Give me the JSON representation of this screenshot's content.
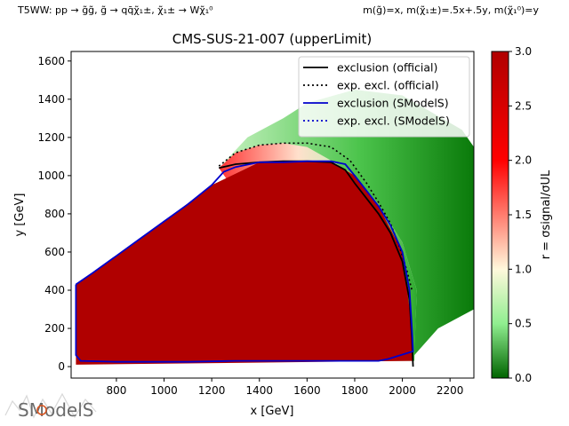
{
  "header": {
    "process": "T5WW: pp → g̃g̃, g̃ → qq̄χ̃₁±, χ̃₁± → Wχ̃₁⁰",
    "mass_relation": "m(g̃)=x, m(χ̃₁±)=.5x+.5y, m(χ̃₁⁰)=y"
  },
  "logo": {
    "text": "SModelS"
  },
  "chart_data": {
    "type": "heatmap",
    "title": "CMS-SUS-21-007 (upperLimit)",
    "xlabel": "x [GeV]",
    "ylabel": "y [GeV]",
    "xlim": [
      610,
      2300
    ],
    "ylim": [
      -60,
      1650
    ],
    "xticks": [
      800,
      1000,
      1200,
      1400,
      1600,
      1800,
      2000,
      2200
    ],
    "yticks": [
      0,
      200,
      400,
      600,
      800,
      1000,
      1200,
      1400,
      1600
    ],
    "colorbar": {
      "label": "r = σsignal/σUL",
      "range": [
        0.0,
        3.0
      ],
      "ticks": [
        "0.0",
        "0.5",
        "1.0",
        "1.5",
        "2.0",
        "2.5",
        "3.0"
      ],
      "colors": [
        {
          "value": 0.0,
          "color": "#006400"
        },
        {
          "value": 0.5,
          "color": "#90ee90"
        },
        {
          "value": 1.0,
          "color": "#fff8dc"
        },
        {
          "value": 2.0,
          "color": "#ff0000"
        },
        {
          "value": 3.0,
          "color": "#b00000"
        }
      ]
    },
    "legend_position": "top-right",
    "series": [
      {
        "name": "exclusion (official)",
        "color": "#000000",
        "style": "solid",
        "points": [
          [
            1230,
            1040
          ],
          [
            1300,
            1060
          ],
          [
            1400,
            1070
          ],
          [
            1500,
            1075
          ],
          [
            1600,
            1075
          ],
          [
            1700,
            1070
          ],
          [
            1760,
            1030
          ],
          [
            1800,
            960
          ],
          [
            1850,
            880
          ],
          [
            1900,
            800
          ],
          [
            1950,
            700
          ],
          [
            2000,
            550
          ],
          [
            2030,
            350
          ],
          [
            2040,
            150
          ],
          [
            2045,
            0
          ]
        ]
      },
      {
        "name": "exp. excl. (official)",
        "color": "#000000",
        "style": "dotted",
        "points": [
          [
            1230,
            1050
          ],
          [
            1300,
            1120
          ],
          [
            1400,
            1160
          ],
          [
            1500,
            1170
          ],
          [
            1600,
            1170
          ],
          [
            1700,
            1150
          ],
          [
            1780,
            1080
          ],
          [
            1850,
            960
          ],
          [
            1900,
            860
          ],
          [
            1950,
            750
          ],
          [
            1990,
            620
          ],
          [
            2020,
            500
          ],
          [
            2040,
            400
          ]
        ]
      },
      {
        "name": "exclusion (SModelS)",
        "color": "#0000cc",
        "style": "solid",
        "points": [
          [
            630,
            430
          ],
          [
            700,
            490
          ],
          [
            800,
            580
          ],
          [
            900,
            670
          ],
          [
            1000,
            760
          ],
          [
            1100,
            850
          ],
          [
            1200,
            950
          ],
          [
            1250,
            1020
          ],
          [
            1300,
            1045
          ],
          [
            1400,
            1070
          ],
          [
            1500,
            1070
          ],
          [
            1600,
            1075
          ],
          [
            1700,
            1075
          ],
          [
            1760,
            1060
          ],
          [
            1800,
            1000
          ],
          [
            1850,
            920
          ],
          [
            1900,
            840
          ],
          [
            1950,
            740
          ],
          [
            2000,
            600
          ],
          [
            2030,
            400
          ],
          [
            2040,
            200
          ],
          [
            2045,
            80
          ],
          [
            1940,
            40
          ],
          [
            1900,
            30
          ],
          [
            1600,
            30
          ],
          [
            1300,
            30
          ],
          [
            1100,
            25
          ],
          [
            800,
            25
          ],
          [
            650,
            30
          ],
          [
            630,
            60
          ],
          [
            630,
            430
          ]
        ]
      },
      {
        "name": "exp. excl. (SModelS)",
        "color": "#0000cc",
        "style": "dotted",
        "points": []
      }
    ],
    "heatmap_regions": [
      {
        "label": "excluded_core",
        "r": 3.0,
        "polygon": [
          [
            630,
            10
          ],
          [
            630,
            430
          ],
          [
            800,
            580
          ],
          [
            1000,
            760
          ],
          [
            1200,
            950
          ],
          [
            1400,
            1070
          ],
          [
            1700,
            1075
          ],
          [
            1800,
            1000
          ],
          [
            1900,
            840
          ],
          [
            2000,
            600
          ],
          [
            2040,
            200
          ],
          [
            2045,
            30
          ]
        ]
      },
      {
        "label": "transition",
        "r": 1.0,
        "polygon": [
          [
            1800,
            30
          ],
          [
            2050,
            30
          ],
          [
            2060,
            400
          ],
          [
            2000,
            650
          ],
          [
            1900,
            850
          ],
          [
            1800,
            1000
          ],
          [
            1700,
            1080
          ],
          [
            1600,
            1150
          ],
          [
            1500,
            1170
          ],
          [
            1400,
            1160
          ],
          [
            1300,
            1120
          ],
          [
            1230,
            1040
          ]
        ]
      },
      {
        "label": "allowed",
        "r": 0.2,
        "polygon": [
          [
            1230,
            1040
          ],
          [
            1350,
            1200
          ],
          [
            1500,
            1300
          ],
          [
            1600,
            1380
          ],
          [
            1800,
            1450
          ],
          [
            2000,
            1420
          ],
          [
            2250,
            1240
          ],
          [
            2300,
            1150
          ],
          [
            2300,
            300
          ],
          [
            2150,
            200
          ],
          [
            2050,
            60
          ],
          [
            2060,
            400
          ],
          [
            2000,
            650
          ],
          [
            1900,
            850
          ],
          [
            1800,
            1000
          ],
          [
            1700,
            1080
          ],
          [
            1500,
            1170
          ],
          [
            1300,
            1120
          ]
        ]
      }
    ]
  }
}
